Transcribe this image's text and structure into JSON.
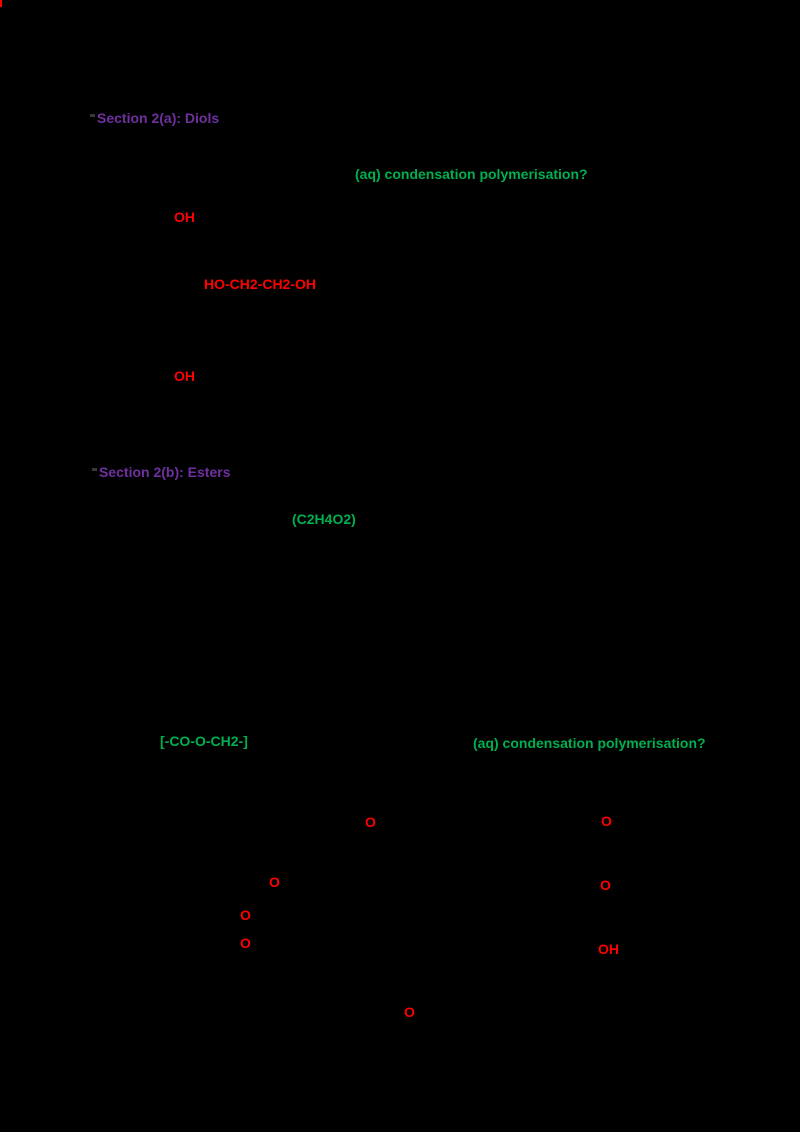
{
  "colors": {
    "background": "#000000",
    "heading_purple": "#7030a0",
    "label_green": "#00b050",
    "atom_red": "#ff0000"
  },
  "sections": {
    "top": {
      "heading": "Section 2(a): Diols",
      "green_note": "(aq)  condensation polymerisation?",
      "oh_top": "OH",
      "formula": "HO-CH2-CH2-OH",
      "oh_bottom": "OH"
    },
    "middle": {
      "heading": "Section 2(b): Esters",
      "green_note": "(C2H4O2)"
    },
    "bottom": {
      "left_label": "[-CO-O-CH2-]",
      "right_label": "(aq)  condensation polymerisation?",
      "left_atoms": [
        "O",
        "O",
        "O",
        "O",
        "O"
      ],
      "right_atoms": [
        "O",
        "O",
        "OH"
      ]
    }
  }
}
